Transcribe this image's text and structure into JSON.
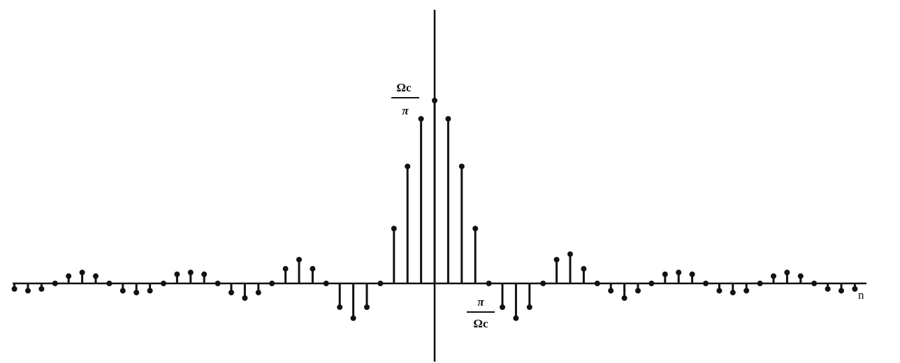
{
  "chart_data": {
    "type": "stem",
    "xlabel": "n",
    "ylabel": "",
    "annotations": {
      "peak_label": {
        "numerator": "Ωc",
        "denominator": "π"
      },
      "zero_crossing_label": {
        "numerator": "π",
        "denominator": "Ωc"
      }
    },
    "ylim": [
      -0.25,
      1.35
    ],
    "xlim": [
      -31,
      31
    ],
    "x": [
      -31,
      -30,
      -29,
      -28,
      -27,
      -26,
      -25,
      -24,
      -23,
      -22,
      -21,
      -20,
      -19,
      -18,
      -17,
      -16,
      -15,
      -14,
      -13,
      -12,
      -11,
      -10,
      -9,
      -8,
      -7,
      -6,
      -5,
      -4,
      -3,
      -2,
      -1,
      0,
      1,
      2,
      3,
      4,
      5,
      6,
      7,
      8,
      9,
      10,
      11,
      12,
      13,
      14,
      15,
      16,
      17,
      18,
      19,
      20,
      21,
      22,
      23,
      24,
      25,
      26,
      27,
      28,
      29,
      30,
      31
    ],
    "values": [
      -0.03,
      -0.04,
      -0.03,
      0,
      0.04,
      0.06,
      0.04,
      0,
      -0.04,
      -0.05,
      -0.04,
      0,
      0.05,
      0.06,
      0.05,
      0,
      -0.05,
      -0.08,
      -0.05,
      0,
      0.08,
      0.13,
      0.08,
      0,
      -0.13,
      -0.19,
      -0.13,
      0,
      0.3,
      0.64,
      0.9,
      1.0,
      0.9,
      0.64,
      0.3,
      0,
      -0.13,
      -0.19,
      -0.13,
      0,
      0.13,
      0.16,
      0.08,
      0,
      -0.04,
      -0.08,
      -0.04,
      0,
      0.05,
      0.06,
      0.05,
      0,
      -0.04,
      -0.05,
      -0.04,
      0,
      0.04,
      0.06,
      0.04,
      0,
      -0.03,
      -0.04,
      -0.03
    ],
    "grid": false,
    "legend": "none"
  }
}
